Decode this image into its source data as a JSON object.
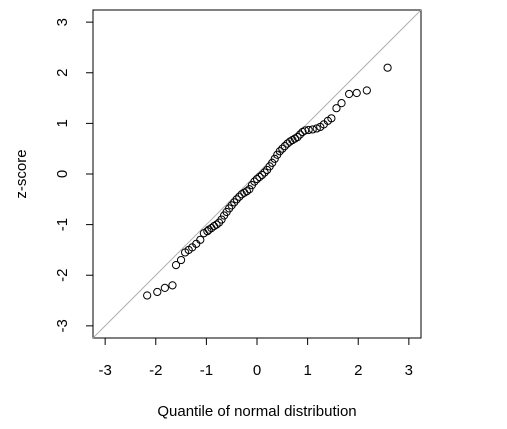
{
  "chart_data": {
    "type": "scatter",
    "xlabel": "Quantile of normal distribution",
    "ylabel": "z-score",
    "xlim": [
      -3.24,
      3.24
    ],
    "ylim": [
      -3.24,
      3.24
    ],
    "xticks": [
      -3,
      -2,
      -1,
      0,
      1,
      2,
      3
    ],
    "yticks": [
      -3,
      -2,
      -1,
      0,
      1,
      2,
      3
    ],
    "reference_line": true,
    "color": "#000000",
    "x": [
      -2.17,
      -1.97,
      -1.82,
      -1.67,
      -1.6,
      -1.5,
      -1.42,
      -1.35,
      -1.28,
      -1.2,
      -1.12,
      -1.05,
      -0.98,
      -0.95,
      -0.9,
      -0.85,
      -0.8,
      -0.75,
      -0.7,
      -0.65,
      -0.6,
      -0.55,
      -0.5,
      -0.45,
      -0.4,
      -0.35,
      -0.3,
      -0.25,
      -0.2,
      -0.15,
      -0.1,
      -0.05,
      0,
      0.05,
      0.1,
      0.15,
      0.2,
      0.25,
      0.3,
      0.35,
      0.4,
      0.45,
      0.5,
      0.55,
      0.6,
      0.65,
      0.7,
      0.75,
      0.8,
      0.85,
      0.9,
      0.95,
      1.02,
      1.1,
      1.18,
      1.25,
      1.32,
      1.4,
      1.47,
      1.57,
      1.67,
      1.82,
      1.97,
      2.17,
      2.58
    ],
    "y": [
      -2.4,
      -2.33,
      -2.25,
      -2.2,
      -1.8,
      -1.7,
      -1.55,
      -1.5,
      -1.45,
      -1.38,
      -1.3,
      -1.17,
      -1.13,
      -1.1,
      -1.07,
      -1.03,
      -1.0,
      -0.96,
      -0.9,
      -0.82,
      -0.75,
      -0.68,
      -0.62,
      -0.56,
      -0.5,
      -0.45,
      -0.4,
      -0.37,
      -0.34,
      -0.3,
      -0.22,
      -0.15,
      -0.1,
      -0.06,
      -0.02,
      0.03,
      0.08,
      0.15,
      0.22,
      0.3,
      0.38,
      0.45,
      0.5,
      0.55,
      0.6,
      0.64,
      0.67,
      0.7,
      0.73,
      0.78,
      0.83,
      0.86,
      0.87,
      0.88,
      0.9,
      0.93,
      0.98,
      1.05,
      1.1,
      1.3,
      1.4,
      1.58,
      1.6,
      1.65,
      2.1
    ]
  }
}
